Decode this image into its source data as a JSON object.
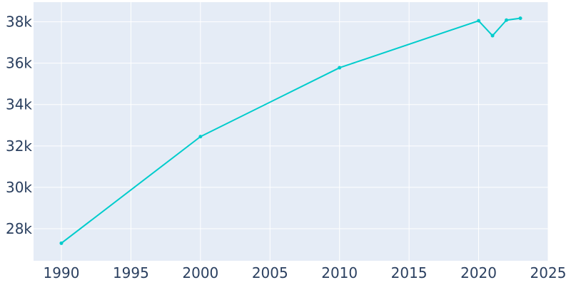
{
  "chart_data": {
    "type": "line",
    "title": "",
    "xlabel": "",
    "ylabel": "",
    "x": [
      1990,
      2000,
      2010,
      2020,
      2021,
      2022,
      2023
    ],
    "series": [
      {
        "values": [
          27300,
          32450,
          35780,
          38050,
          37330,
          38080,
          38170
        ],
        "color": "#00cccc"
      }
    ],
    "xlim": [
      1988,
      2025
    ],
    "ylim": [
      26450,
      38950
    ],
    "x_ticks": [
      1990,
      1995,
      2000,
      2005,
      2010,
      2015,
      2020,
      2025
    ],
    "x_tick_labels": [
      "1990",
      "1995",
      "2000",
      "2005",
      "2010",
      "2015",
      "2020",
      "2025"
    ],
    "y_ticks": [
      28000,
      30000,
      32000,
      34000,
      36000,
      38000
    ],
    "y_tick_labels": [
      "28k",
      "30k",
      "32k",
      "34k",
      "36k",
      "38k"
    ],
    "grid": true,
    "legend": "none",
    "plot_background": "#e5ecf6",
    "grid_color": "#ffffff",
    "text_color": "#2a3f5f"
  }
}
